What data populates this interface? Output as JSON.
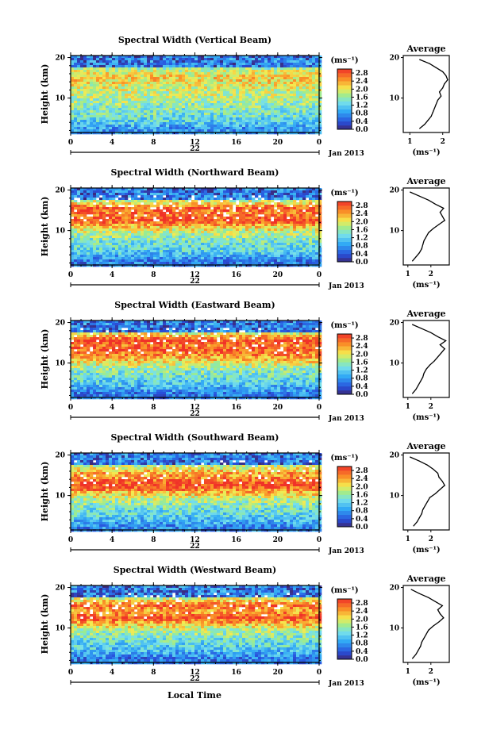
{
  "figure": {
    "xlabel": "Local Time"
  },
  "chart_data": [
    {
      "type": "heatmap",
      "title": "Spectral Width (Vertical Beam)",
      "ylabel": "Height (km)",
      "x_ticks": [
        "0",
        "4",
        "8",
        "12",
        "16",
        "20",
        "0"
      ],
      "y_ticks": [
        "20",
        "10"
      ],
      "xlim": [
        0,
        24
      ],
      "ylim": [
        1.5,
        20.5
      ],
      "date_day": "22",
      "date_label": "Jan 2013",
      "colorbar": {
        "label": "(ms⁻¹)",
        "ticks": [
          "2.8",
          "2.4",
          "2.0",
          "1.6",
          "1.2",
          "0.8",
          "0.4",
          "0.0"
        ],
        "range": [
          0.0,
          3.0
        ]
      },
      "profile": {
        "title": "Average",
        "xlabel": "(ms⁻¹)",
        "x_ticks": [
          "1",
          "2"
        ],
        "y_ticks": [
          "20",
          "10"
        ],
        "xlim": [
          0.8,
          2.2
        ],
        "height": [
          2.5,
          3.5,
          4.5,
          5.5,
          6.5,
          7.5,
          8.5,
          9.5,
          10.5,
          11.5,
          12.5,
          13.5,
          14.5,
          15.5,
          16.5,
          17.5,
          18.5,
          19.5
        ],
        "value": [
          1.3,
          1.45,
          1.55,
          1.65,
          1.7,
          1.75,
          1.8,
          1.85,
          1.95,
          1.9,
          2.0,
          2.05,
          2.15,
          2.1,
          2.0,
          1.8,
          1.6,
          1.3
        ]
      }
    },
    {
      "type": "heatmap",
      "title": "Spectral Width (Northward Beam)",
      "ylabel": "Height (km)",
      "x_ticks": [
        "0",
        "4",
        "8",
        "12",
        "16",
        "20",
        "0"
      ],
      "y_ticks": [
        "20",
        "10"
      ],
      "xlim": [
        0,
        24
      ],
      "ylim": [
        1.5,
        20.5
      ],
      "date_day": "22",
      "date_label": "Jan 2013",
      "colorbar": {
        "label": "(ms⁻¹)",
        "ticks": [
          "2.8",
          "2.4",
          "2.0",
          "1.6",
          "1.2",
          "0.8",
          "0.4",
          "0.0"
        ],
        "range": [
          0.0,
          3.0
        ]
      },
      "profile": {
        "title": "Average",
        "xlabel": "(ms⁻¹)",
        "x_ticks": [
          "1",
          "2"
        ],
        "y_ticks": [
          "20",
          "10"
        ],
        "xlim": [
          0.8,
          2.8
        ],
        "height": [
          2.5,
          3.5,
          4.5,
          5.5,
          6.5,
          7.5,
          8.5,
          9.5,
          10.5,
          11.5,
          12.5,
          13.5,
          14.5,
          15.5,
          16.5,
          17.5,
          18.5,
          19.5
        ],
        "value": [
          1.2,
          1.35,
          1.5,
          1.6,
          1.65,
          1.7,
          1.8,
          1.9,
          2.1,
          2.35,
          2.6,
          2.5,
          2.4,
          2.55,
          2.2,
          1.9,
          1.5,
          1.1
        ]
      }
    },
    {
      "type": "heatmap",
      "title": "Spectral Width (Eastward Beam)",
      "ylabel": "Height (km)",
      "x_ticks": [
        "0",
        "4",
        "8",
        "12",
        "16",
        "20",
        "0"
      ],
      "y_ticks": [
        "20",
        "10"
      ],
      "xlim": [
        0,
        24
      ],
      "ylim": [
        1.5,
        20.5
      ],
      "date_day": "22",
      "date_label": "Jan 2013",
      "colorbar": {
        "label": "(ms⁻¹)",
        "ticks": [
          "2.8",
          "2.4",
          "2.0",
          "1.6",
          "1.2",
          "0.8",
          "0.4",
          "0.0"
        ],
        "range": [
          0.0,
          3.0
        ]
      },
      "profile": {
        "title": "Average",
        "xlabel": "(ms⁻¹)",
        "x_ticks": [
          "1",
          "2"
        ],
        "y_ticks": [
          "20",
          "10"
        ],
        "xlim": [
          0.8,
          2.8
        ],
        "height": [
          2.5,
          3.5,
          4.5,
          5.5,
          6.5,
          7.5,
          8.5,
          9.5,
          10.5,
          11.5,
          12.5,
          13.5,
          14.5,
          15.5,
          16.5,
          17.5,
          18.5,
          19.5
        ],
        "value": [
          1.2,
          1.35,
          1.45,
          1.55,
          1.65,
          1.7,
          1.8,
          1.95,
          2.15,
          2.3,
          2.45,
          2.6,
          2.4,
          2.65,
          2.3,
          2.0,
          1.6,
          1.2
        ]
      }
    },
    {
      "type": "heatmap",
      "title": "Spectral Width (Southward Beam)",
      "ylabel": "Height (km)",
      "x_ticks": [
        "0",
        "4",
        "8",
        "12",
        "16",
        "20",
        "0"
      ],
      "y_ticks": [
        "20",
        "10"
      ],
      "xlim": [
        0,
        24
      ],
      "ylim": [
        1.5,
        20.5
      ],
      "date_day": "22",
      "date_label": "Jan 2013",
      "colorbar": {
        "label": "(ms⁻¹)",
        "ticks": [
          "2.8",
          "2.4",
          "2.0",
          "1.6",
          "1.2",
          "0.8",
          "0.4",
          "0.0"
        ],
        "range": [
          0.0,
          3.0
        ]
      },
      "profile": {
        "title": "Average",
        "xlabel": "(ms⁻¹)",
        "x_ticks": [
          "1",
          "2"
        ],
        "y_ticks": [
          "20",
          "10"
        ],
        "xlim": [
          0.8,
          2.8
        ],
        "height": [
          2.5,
          3.5,
          4.5,
          5.5,
          6.5,
          7.5,
          8.5,
          9.5,
          10.5,
          11.5,
          12.5,
          13.5,
          14.5,
          15.5,
          16.5,
          17.5,
          18.5,
          19.5
        ],
        "value": [
          1.25,
          1.4,
          1.5,
          1.6,
          1.65,
          1.75,
          1.85,
          1.95,
          2.2,
          2.4,
          2.6,
          2.5,
          2.35,
          2.3,
          2.1,
          1.85,
          1.5,
          1.1
        ]
      }
    },
    {
      "type": "heatmap",
      "title": "Spectral Width (Westward Beam)",
      "ylabel": "Height (km)",
      "x_ticks": [
        "0",
        "4",
        "8",
        "12",
        "16",
        "20",
        "0"
      ],
      "y_ticks": [
        "20",
        "10"
      ],
      "xlim": [
        0,
        24
      ],
      "ylim": [
        1.5,
        20.5
      ],
      "date_day": "22",
      "date_label": "Jan 2013",
      "colorbar": {
        "label": "(ms⁻¹)",
        "ticks": [
          "2.8",
          "2.4",
          "2.0",
          "1.6",
          "1.2",
          "0.8",
          "0.4",
          "0.0"
        ],
        "range": [
          0.0,
          3.0
        ]
      },
      "profile": {
        "title": "Average",
        "xlabel": "(ms⁻¹)",
        "x_ticks": [
          "1",
          "2"
        ],
        "y_ticks": [
          "20",
          "10"
        ],
        "xlim": [
          0.8,
          2.8
        ],
        "height": [
          2.5,
          3.5,
          4.5,
          5.5,
          6.5,
          7.5,
          8.5,
          9.5,
          10.5,
          11.5,
          12.5,
          13.5,
          14.5,
          15.5,
          16.5,
          17.5,
          18.5,
          19.5
        ],
        "value": [
          1.2,
          1.35,
          1.45,
          1.55,
          1.6,
          1.7,
          1.8,
          1.9,
          2.1,
          2.35,
          2.55,
          2.4,
          2.3,
          2.5,
          2.2,
          1.9,
          1.5,
          1.15
        ]
      }
    }
  ]
}
